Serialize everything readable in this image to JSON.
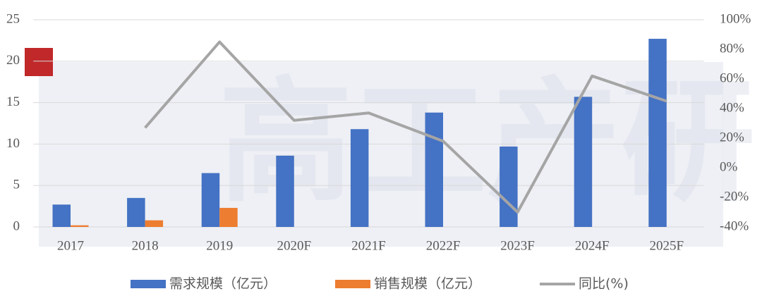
{
  "chart_data": {
    "type": "bar",
    "watermark": "高工产研",
    "categories": [
      "2017",
      "2018",
      "2019",
      "2020F",
      "2021F",
      "2022F",
      "2023F",
      "2024F",
      "2025F"
    ],
    "series": [
      {
        "name": "需求规模（亿元）",
        "type": "bar",
        "color": "#4472c4",
        "values": [
          2.7,
          3.5,
          6.5,
          8.6,
          11.8,
          13.8,
          9.7,
          15.7,
          22.7
        ]
      },
      {
        "name": "销售规模（亿元）",
        "type": "bar",
        "color": "#ed7d31",
        "values": [
          0.2,
          0.8,
          2.3,
          null,
          null,
          null,
          null,
          null,
          null
        ]
      },
      {
        "name": "同比(%)",
        "type": "line",
        "axis": "y2",
        "color": "#a5a5a5",
        "values": [
          null,
          27,
          85,
          32,
          37,
          18,
          -30,
          62,
          45
        ]
      }
    ],
    "ylim": [
      0,
      25
    ],
    "yticks": [
      0,
      5,
      10,
      15,
      20,
      25
    ],
    "y2lim": [
      -40,
      100
    ],
    "y2ticks": [
      {
        "value": -40,
        "label": "-40%"
      },
      {
        "value": -20,
        "label": "-20%"
      },
      {
        "value": 0,
        "label": "0%"
      },
      {
        "value": 20,
        "label": "20%"
      },
      {
        "value": 40,
        "label": "40%"
      },
      {
        "value": 60,
        "label": "60%"
      },
      {
        "value": 80,
        "label": "80%"
      },
      {
        "value": 100,
        "label": "100%"
      }
    ],
    "grid": true,
    "legend": "bottom"
  }
}
